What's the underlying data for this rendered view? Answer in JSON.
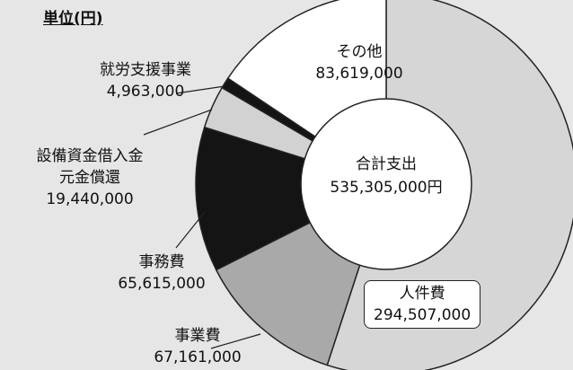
{
  "chart_data": {
    "type": "pie",
    "title": "単位(円)",
    "categories": [
      "人件費",
      "事業費",
      "事務費",
      "設備資金借入金\n元金償還",
      "就労支援事業",
      "その他"
    ],
    "values": [
      294507000,
      67161000,
      65615000,
      19440000,
      4963000,
      83619000
    ],
    "value_labels": [
      "294,507,000",
      "67,161,000",
      "65,615,000",
      "19,440,000",
      "4,963,000",
      "83,619,000"
    ],
    "colors": [
      "#d6d6d6",
      "#a9a9a9",
      "#141414",
      "#d2d2d2",
      "#141414",
      "#ffffff"
    ],
    "donut": true,
    "total_label": "合計支出",
    "total": "535,305,000円"
  }
}
